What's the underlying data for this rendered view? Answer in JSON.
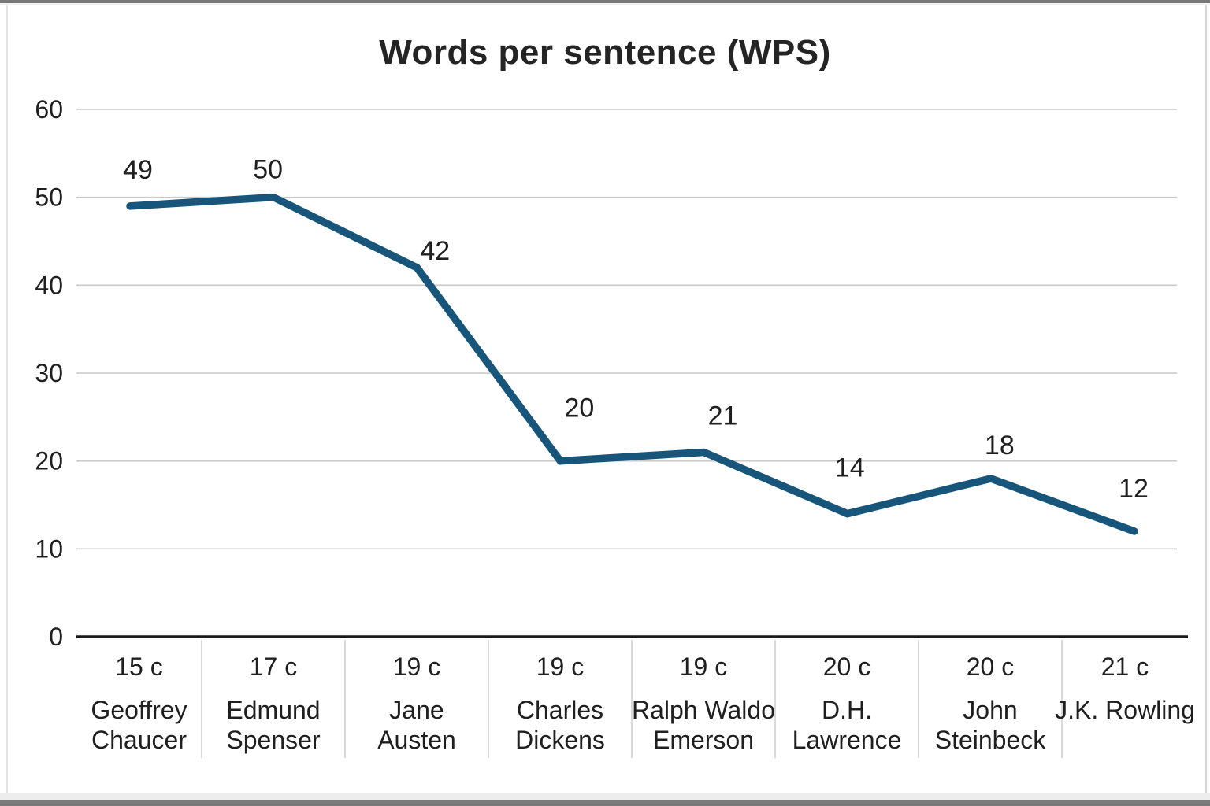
{
  "page": {
    "background": "#ffffff"
  },
  "chart_data": {
    "type": "line",
    "title": "Words per sentence (WPS)",
    "categories": [
      {
        "century": "15 c",
        "author_lines": [
          "Geoffrey",
          "Chaucer"
        ]
      },
      {
        "century": "17 c",
        "author_lines": [
          "Edmund",
          "Spenser"
        ]
      },
      {
        "century": "19 c",
        "author_lines": [
          "Jane",
          "Austen"
        ]
      },
      {
        "century": "19 c",
        "author_lines": [
          "Charles",
          "Dickens"
        ]
      },
      {
        "century": "19 c",
        "author_lines": [
          "Ralph Waldo",
          "Emerson"
        ]
      },
      {
        "century": "20 c",
        "author_lines": [
          "D.H.",
          "Lawrence"
        ]
      },
      {
        "century": "20 c",
        "author_lines": [
          "John",
          "Steinbeck"
        ]
      },
      {
        "century": "21 c",
        "author_lines": [
          "J.K. Rowling"
        ]
      }
    ],
    "values": [
      49,
      50,
      42,
      20,
      21,
      14,
      18,
      12
    ],
    "data_labels": [
      "49",
      "50",
      "42",
      "20",
      "21",
      "14",
      "18",
      "12"
    ],
    "y_ticks": [
      0,
      10,
      20,
      30,
      40,
      50,
      60
    ],
    "ylim": [
      0,
      63
    ],
    "xlabel": "",
    "ylabel": "",
    "grid": true,
    "legend": "none",
    "colors": {
      "line": "#17567a",
      "gridline": "#c9c9c9",
      "axis": "#1a1a1a",
      "text": "#1f1f1f",
      "separator": "#d9d9d9"
    }
  }
}
